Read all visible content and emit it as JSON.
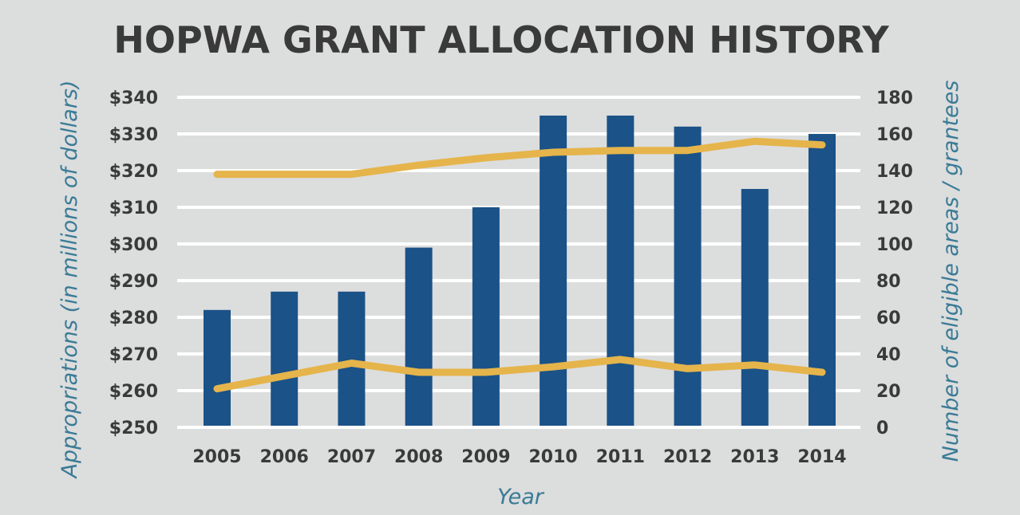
{
  "chart_data": {
    "type": "bar",
    "title": "HOPWA GRANT ALLOCATION HISTORY",
    "xlabel": "Year",
    "ylabel": "Appropriations (in millions of dollars)",
    "y2label": "Number of eligible areas / grantees",
    "categories": [
      "2005",
      "2006",
      "2007",
      "2008",
      "2009",
      "2010",
      "2011",
      "2012",
      "2013",
      "2014"
    ],
    "ylim": [
      250,
      340
    ],
    "y2lim": [
      0,
      180
    ],
    "yticks": [
      "$250",
      "$260",
      "$270",
      "$280",
      "$290",
      "$300",
      "$310",
      "$320",
      "$330",
      "$340"
    ],
    "y2ticks": [
      "0",
      "20",
      "40",
      "60",
      "80",
      "100",
      "120",
      "140",
      "160",
      "180"
    ],
    "grid": true,
    "series": [
      {
        "type": "bar",
        "axis": "left",
        "color": "#1b5288",
        "values": [
          282,
          287,
          287,
          299,
          310,
          335,
          335,
          332,
          315,
          330
        ]
      },
      {
        "type": "line",
        "axis": "right",
        "color": "#e5b44b",
        "values": [
          138,
          138,
          138,
          143,
          147,
          150,
          151,
          151,
          156,
          154
        ]
      },
      {
        "type": "line",
        "axis": "right",
        "color": "#e5b44b",
        "values": [
          21,
          28,
          35,
          30,
          30,
          33,
          37,
          32,
          34,
          30
        ]
      }
    ]
  }
}
